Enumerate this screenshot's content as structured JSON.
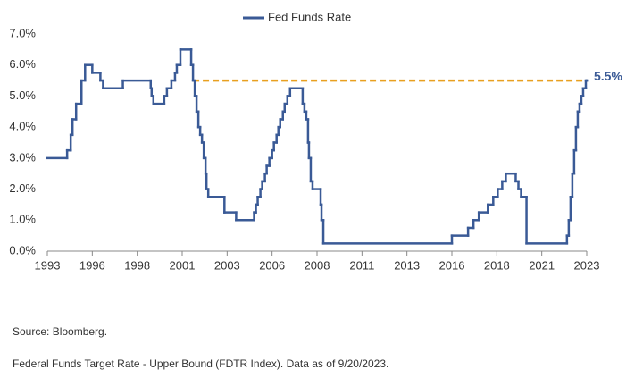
{
  "chart_data": {
    "type": "line",
    "step": "post",
    "legend_position": "top",
    "series": [
      {
        "name": "Fed Funds Rate",
        "color": "#3a5a96",
        "values": [
          3.0,
          3.25,
          3.75,
          4.25,
          4.75,
          5.5,
          6.0,
          5.75,
          5.5,
          5.25,
          5.5,
          5.25,
          5.0,
          4.75,
          5.0,
          5.25,
          5.5,
          5.75,
          6.0,
          6.5,
          6.0,
          5.5,
          5.0,
          4.5,
          4.0,
          3.75,
          3.5,
          3.0,
          2.5,
          2.0,
          1.75,
          1.25,
          1.0,
          1.25,
          1.5,
          1.75,
          2.0,
          2.25,
          2.5,
          2.75,
          3.0,
          3.25,
          3.5,
          3.75,
          4.0,
          4.25,
          4.5,
          4.75,
          5.0,
          5.25,
          4.75,
          4.5,
          4.25,
          3.5,
          3.0,
          2.25,
          2.0,
          1.5,
          1.0,
          0.25,
          0.5,
          0.75,
          1.0,
          1.25,
          1.5,
          1.75,
          2.0,
          2.25,
          2.5,
          2.25,
          2.0,
          1.75,
          0.25,
          0.5,
          1.0,
          1.75,
          2.5,
          3.25,
          4.0,
          4.5,
          4.75,
          5.0,
          5.25,
          5.5,
          5.5
        ]
      }
    ],
    "x": [
      1993.0,
      1994.1,
      1994.3,
      1994.4,
      1994.6,
      1994.9,
      1995.1,
      1995.5,
      1995.95,
      1996.1,
      1997.2,
      1998.75,
      1998.8,
      1998.9,
      1999.5,
      1999.65,
      1999.9,
      2000.1,
      2000.2,
      2000.4,
      2001.0,
      2001.1,
      2001.2,
      2001.3,
      2001.4,
      2001.5,
      2001.6,
      2001.7,
      2001.8,
      2001.85,
      2001.95,
      2002.85,
      2003.5,
      2004.5,
      2004.6,
      2004.7,
      2004.85,
      2004.95,
      2005.1,
      2005.2,
      2005.35,
      2005.5,
      2005.6,
      2005.75,
      2005.85,
      2005.95,
      2006.1,
      2006.2,
      2006.35,
      2006.5,
      2007.2,
      2007.3,
      2007.4,
      2007.5,
      2007.55,
      2007.65,
      2007.75,
      2008.2,
      2008.25,
      2008.35,
      2015.5,
      2016.4,
      2016.7,
      2017.0,
      2017.5,
      2017.8,
      2018.05,
      2018.3,
      2018.5,
      2019.05,
      2019.2,
      2019.35,
      2019.65,
      2021.9,
      2022.0,
      2022.1,
      2022.2,
      2022.3,
      2022.4,
      2022.5,
      2022.6,
      2022.7,
      2022.8,
      2022.95,
      2023.0
    ],
    "xlim": [
      1993,
      2023
    ],
    "xticks": [
      1993,
      {
        "value": 1995.5,
        "label": "1996"
      },
      1998,
      {
        "value": 2000.5,
        "label": "2001"
      },
      2003,
      {
        "value": 2005.5,
        "label": "2006"
      },
      2008,
      {
        "value": 2010.5,
        "label": "2011"
      },
      2013,
      {
        "value": 2015.5,
        "label": "2016"
      },
      2018,
      {
        "value": 2020.5,
        "label": "2021"
      },
      2023
    ],
    "ylim": [
      0,
      7
    ],
    "yticks": [
      {
        "value": 0,
        "label": "0.0%"
      },
      {
        "value": 1,
        "label": "1.0%"
      },
      {
        "value": 2,
        "label": "2.0%"
      },
      {
        "value": 3,
        "label": "3.0%"
      },
      {
        "value": 4,
        "label": "4.0%"
      },
      {
        "value": 5,
        "label": "5.0%"
      },
      {
        "value": 6,
        "label": "6.0%"
      },
      {
        "value": 7,
        "label": "7.0%"
      }
    ],
    "reference_line": {
      "value": 5.5,
      "label": "5.5%",
      "xlim": [
        2001.1,
        2023
      ],
      "color": "#e8a020"
    },
    "source": "Source: Bloomberg.",
    "note": "Federal Funds Target Rate - Upper Bound (FDTR Index). Data as of 9/20/2023."
  }
}
